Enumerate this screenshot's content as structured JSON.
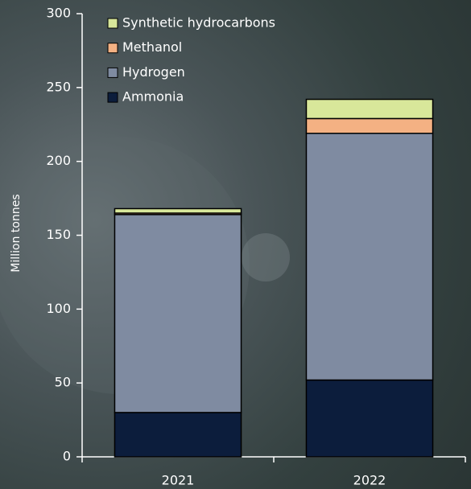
{
  "chart_data": {
    "type": "stacked-bar",
    "y_label": "Million tonnes",
    "categories": [
      "2021",
      "2022"
    ],
    "series": [
      {
        "name": "Ammonia",
        "color": "#0c1d3c",
        "values": [
          30,
          52
        ]
      },
      {
        "name": "Hydrogen",
        "color": "#7f8ba1",
        "values": [
          134,
          167
        ]
      },
      {
        "name": "Methanol",
        "color": "#f4b183",
        "values": [
          1,
          10
        ]
      },
      {
        "name": "Synthetic hydrocarbons",
        "color": "#d8e79a",
        "values": [
          3,
          13
        ]
      }
    ],
    "ylim": [
      0,
      300
    ],
    "yticks": [
      0,
      50,
      100,
      150,
      200,
      250,
      300
    ],
    "legend": "upper left"
  }
}
